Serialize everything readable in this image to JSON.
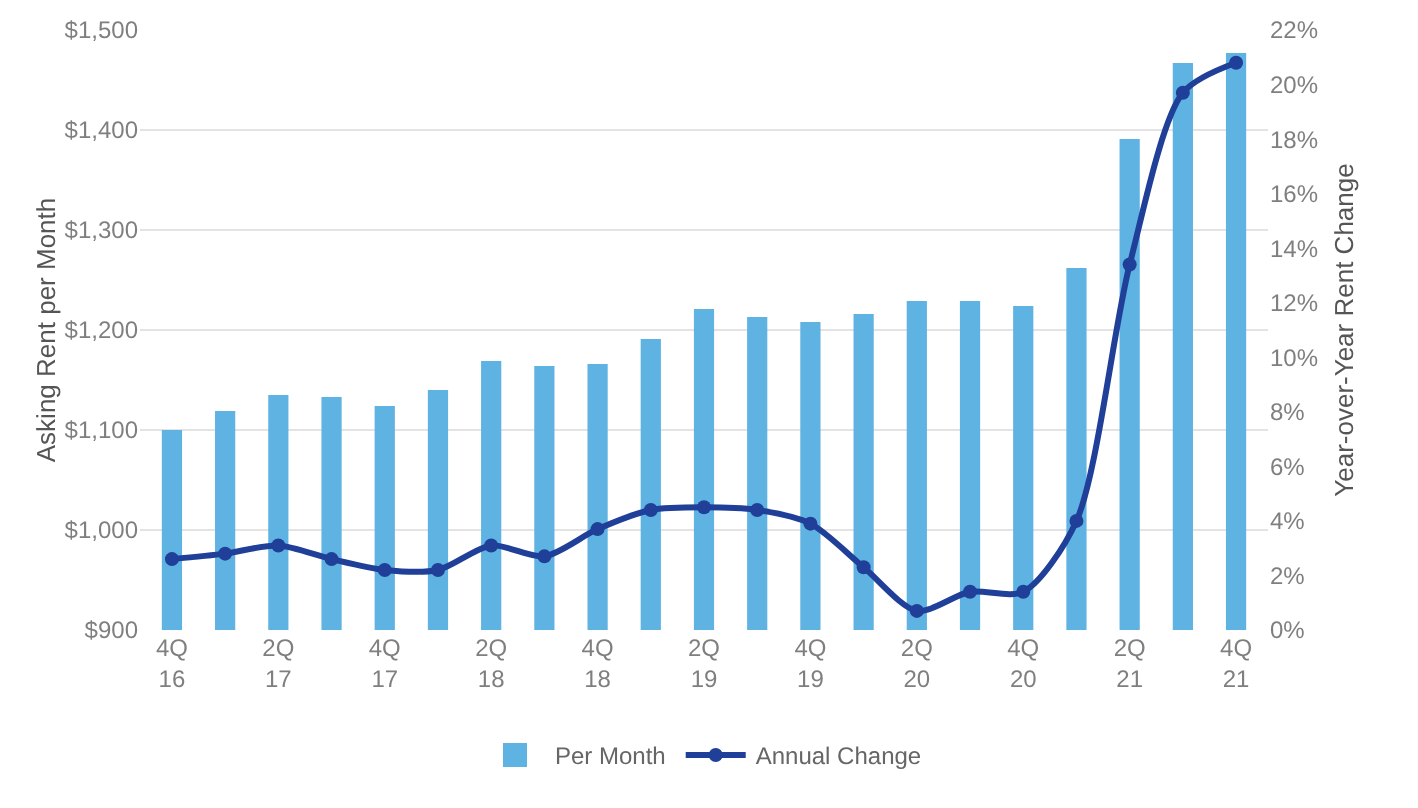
{
  "chart_data": {
    "type": "bar",
    "categories": [
      "4Q\n16",
      null,
      "2Q\n17",
      null,
      "4Q\n17",
      null,
      "2Q\n18",
      null,
      "4Q\n18",
      null,
      "2Q\n19",
      null,
      "4Q\n19",
      null,
      "2Q\n20",
      null,
      "4Q\n20",
      null,
      "2Q\n21",
      null,
      "4Q\n21"
    ],
    "series": [
      {
        "name": "Per Month",
        "color": "#5fb3e3",
        "values": [
          1100,
          1119,
          1135,
          1133,
          1124,
          1140,
          1169,
          1164,
          1166,
          1191,
          1221,
          1213,
          1208,
          1216,
          1229,
          1229,
          1224,
          1262,
          1391,
          1467,
          1477
        ]
      },
      {
        "name": "Annual Change",
        "type": "line",
        "axis": "y2",
        "color": "#1f3f99",
        "values": [
          2.6,
          2.8,
          3.1,
          2.6,
          2.2,
          2.2,
          3.1,
          2.7,
          3.7,
          4.4,
          4.5,
          4.4,
          3.9,
          2.3,
          0.7,
          1.4,
          1.4,
          4.0,
          13.4,
          19.7,
          20.8
        ]
      }
    ],
    "ylabel": "Asking Rent per Month",
    "y2label": "Year-over-Year Rent Change",
    "ylim": [
      900,
      1500
    ],
    "yticks": [
      {
        "value": 900,
        "label": "$900"
      },
      {
        "value": 1000,
        "label": "$1,000"
      },
      {
        "value": 1100,
        "label": "$1,100"
      },
      {
        "value": 1200,
        "label": "$1,200"
      },
      {
        "value": 1300,
        "label": "$1,300"
      },
      {
        "value": 1400,
        "label": "$1,400"
      },
      {
        "value": 1500,
        "label": "$1,500"
      }
    ],
    "y2lim": [
      0,
      22
    ],
    "y2ticks": [
      {
        "value": 0,
        "label": "0%"
      },
      {
        "value": 2,
        "label": "2%"
      },
      {
        "value": 4,
        "label": "4%"
      },
      {
        "value": 6,
        "label": "6%"
      },
      {
        "value": 8,
        "label": "8%"
      },
      {
        "value": 10,
        "label": "10%"
      },
      {
        "value": 12,
        "label": "12%"
      },
      {
        "value": 14,
        "label": "14%"
      },
      {
        "value": 16,
        "label": "16%"
      },
      {
        "value": 18,
        "label": "18%"
      },
      {
        "value": 20,
        "label": "20%"
      },
      {
        "value": 22,
        "label": "22%"
      }
    ],
    "grid": "y",
    "legend": "bottom",
    "marker": "circle",
    "line_style": "solid"
  }
}
